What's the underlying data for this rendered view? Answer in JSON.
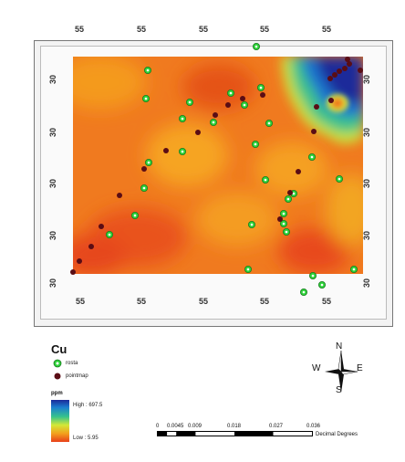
{
  "map": {
    "top_ticks": [
      "55",
      "55",
      "55",
      "55",
      "55"
    ],
    "bottom_ticks": [
      "55",
      "55",
      "55",
      "55",
      "55"
    ],
    "left_ticks": [
      "30",
      "30",
      "30",
      "30",
      "30"
    ],
    "right_ticks": [
      "30",
      "30",
      "30",
      "30",
      "30"
    ],
    "colors": {
      "low": "#e8401a",
      "mid": "#f58a1f",
      "high": "#1a2a9a",
      "rosta": "#2ed33a",
      "pointmap": "#5a0d15"
    }
  },
  "legend": {
    "title": "Cu",
    "items": [
      {
        "label": "rosta",
        "symbol": "green-circle-icon"
      },
      {
        "label": "pointmap",
        "symbol": "dark-red-dot-icon"
      }
    ],
    "unit": "ppm",
    "high_label": "High : 697.5",
    "low_label": "Low : 5.95"
  },
  "north_arrow": {
    "n": "N",
    "s": "S",
    "e": "E",
    "w": "W"
  },
  "scale_bar": {
    "labels": [
      "0",
      "0.0045",
      "0.009",
      "0.018",
      "0.027",
      "0.036"
    ],
    "unit": "Decimal Degrees"
  }
}
